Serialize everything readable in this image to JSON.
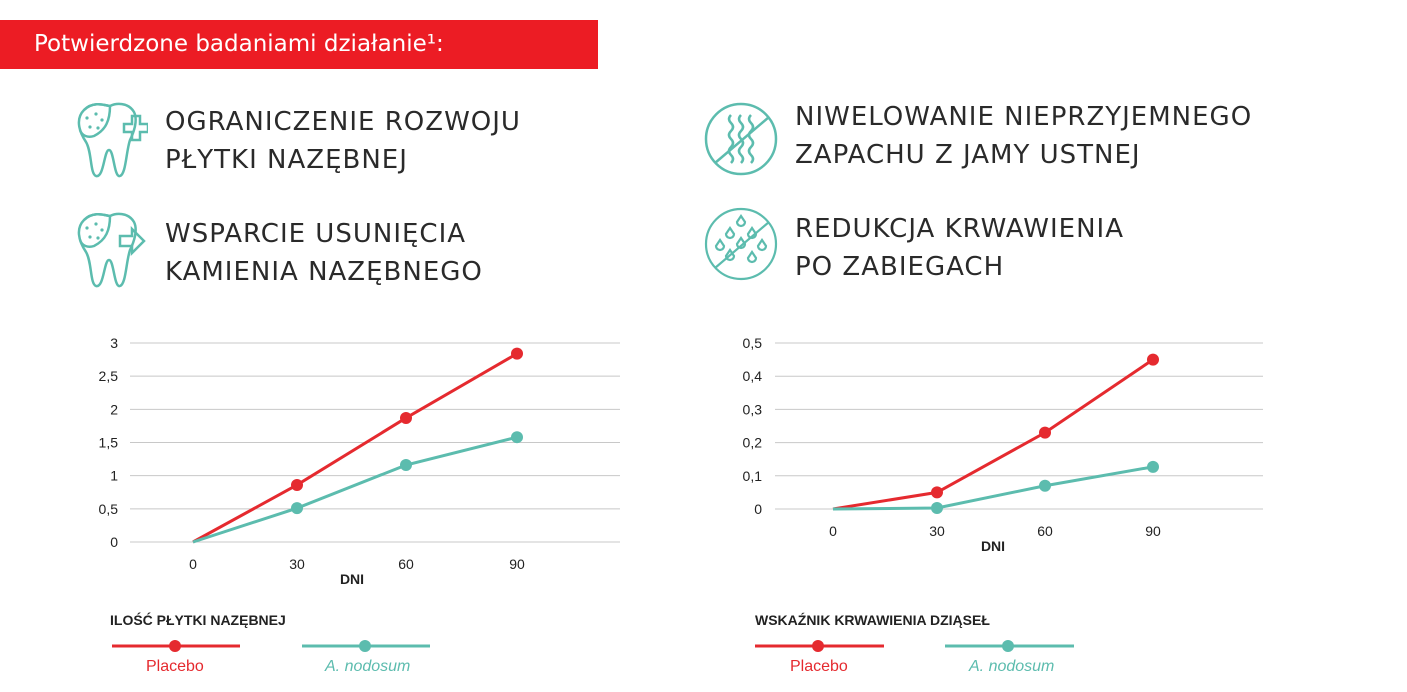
{
  "banner": "Potwierdzone badaniami działanie¹:",
  "features": [
    {
      "line1": "OGRANICZENIE ROZWOJU",
      "line2": "PŁYTKI NAZĘBNEJ",
      "icon": "tooth-plus-icon"
    },
    {
      "line1": "WSPARCIE USUNIĘCIA",
      "line2": "KAMIENIA NAZĘBNEGO",
      "icon": "tooth-arrow-icon"
    },
    {
      "line1": "NIWELOWANIE NIEPRZYJEMNEGO",
      "line2": "ZAPACHU Z JAMY USTNEJ",
      "icon": "no-odor-icon"
    },
    {
      "line1": "REDUKCJA KRWAWIENIA",
      "line2": "PO ZABIEGACH",
      "icon": "no-blood-drops-icon"
    }
  ],
  "colors": {
    "red": "#e52a2f",
    "teal": "#5cbcae",
    "banner": "#ec1c24"
  },
  "chart_data": [
    {
      "type": "line",
      "title": "ILOŚĆ PŁYTKI NAZĘBNEJ",
      "xlabel": "DNI",
      "categories": [
        "0",
        "30",
        "60",
        "90"
      ],
      "yticks": [
        "0",
        "0,5",
        "1",
        "1,5",
        "2",
        "2,5",
        "3"
      ],
      "ylim": [
        0,
        3
      ],
      "grid": true,
      "legend_position": "bottom",
      "series": [
        {
          "name": "Placebo",
          "values": [
            0,
            0.86,
            1.87,
            2.84
          ]
        },
        {
          "name": "A. nodosum",
          "values": [
            0,
            0.51,
            1.16,
            1.58
          ]
        }
      ]
    },
    {
      "type": "line",
      "title": "WSKAŹNIK KRWAWIENIA DZIĄSEŁ",
      "xlabel": "DNI",
      "categories": [
        "0",
        "30",
        "60",
        "90"
      ],
      "yticks": [
        "0",
        "0,1",
        "0,2",
        "0,3",
        "0,4",
        "0,5"
      ],
      "ylim": [
        0,
        0.5
      ],
      "grid": true,
      "legend_position": "bottom",
      "series": [
        {
          "name": "Placebo",
          "values": [
            0,
            0.05,
            0.23,
            0.45
          ]
        },
        {
          "name": "A. nodosum",
          "values": [
            0,
            0.003,
            0.07,
            0.127
          ]
        }
      ]
    }
  ]
}
